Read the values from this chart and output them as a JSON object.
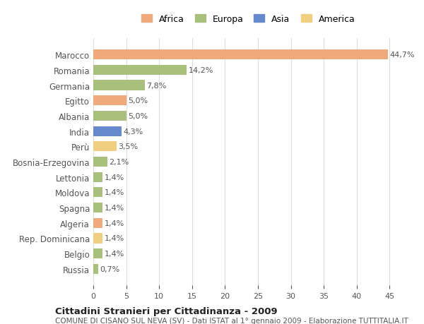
{
  "countries": [
    "Marocco",
    "Romania",
    "Germania",
    "Egitto",
    "Albania",
    "India",
    "Perù",
    "Bosnia-Erzegovina",
    "Lettonia",
    "Moldova",
    "Spagna",
    "Algeria",
    "Rep. Dominicana",
    "Belgio",
    "Russia"
  ],
  "values": [
    44.7,
    14.2,
    7.8,
    5.0,
    5.0,
    4.3,
    3.5,
    2.1,
    1.4,
    1.4,
    1.4,
    1.4,
    1.4,
    1.4,
    0.7
  ],
  "labels": [
    "44,7%",
    "14,2%",
    "7,8%",
    "5,0%",
    "5,0%",
    "4,3%",
    "3,5%",
    "2,1%",
    "1,4%",
    "1,4%",
    "1,4%",
    "1,4%",
    "1,4%",
    "1,4%",
    "0,7%"
  ],
  "continents": [
    "Africa",
    "Europa",
    "Europa",
    "Africa",
    "Europa",
    "Asia",
    "America",
    "Europa",
    "Europa",
    "Europa",
    "Europa",
    "Africa",
    "America",
    "Europa",
    "Europa"
  ],
  "colors": {
    "Africa": "#F0A97A",
    "Europa": "#A8C07C",
    "Asia": "#6688CC",
    "America": "#F0D080"
  },
  "legend_order": [
    "Africa",
    "Europa",
    "Asia",
    "America"
  ],
  "title1": "Cittadini Stranieri per Cittadinanza - 2009",
  "title2": "COMUNE DI CISANO SUL NEVA (SV) - Dati ISTAT al 1° gennaio 2009 - Elaborazione TUTTITALIA.IT",
  "xlim": [
    0,
    47
  ],
  "xticks": [
    0,
    5,
    10,
    15,
    20,
    25,
    30,
    35,
    40,
    45
  ],
  "background_color": "#FFFFFF",
  "bar_height": 0.65,
  "grid_color": "#DDDDDD",
  "text_color": "#555555",
  "label_color": "#555555"
}
